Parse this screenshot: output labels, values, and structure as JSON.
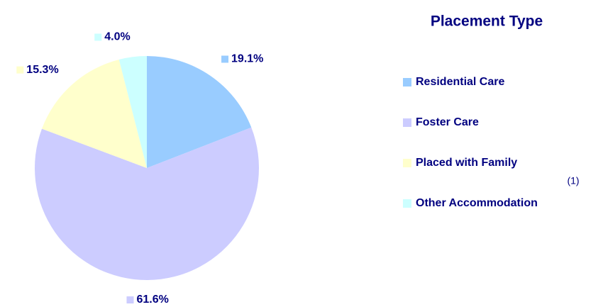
{
  "chart_data": {
    "type": "pie",
    "title": "Placement Type",
    "annotation": "(1)",
    "categories": [
      "Residential Care",
      "Foster Care",
      "Placed with Family",
      "Other Accommodation"
    ],
    "values": [
      19.1,
      61.6,
      15.3,
      4.0
    ],
    "value_labels": [
      "19.1%",
      "61.6%",
      "15.3%",
      "4.0%"
    ],
    "colors": [
      "#99ccff",
      "#ccccff",
      "#ffffcc",
      "#ccffff"
    ],
    "legend": "right"
  }
}
